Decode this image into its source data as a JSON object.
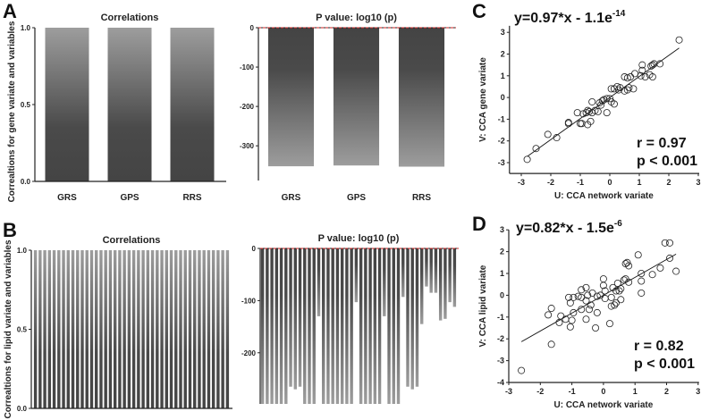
{
  "panels": {
    "A": "A",
    "B": "B",
    "C": "C",
    "D": "D"
  },
  "colors": {
    "bar_dark": "#444444",
    "bar_light": "#9d9d9d",
    "ref_line": "#cc2222",
    "axis": "#222222"
  },
  "chart_data": [
    {
      "id": "A-corr",
      "type": "bar",
      "title": "Correlations",
      "ylabel": "Correaltions for gene variate and variables",
      "categories": [
        "GRS",
        "GPS",
        "RRS"
      ],
      "values": [
        1.0,
        1.0,
        1.0
      ],
      "ylim": [
        0,
        1
      ],
      "yticks": [
        "1.0",
        "0.5",
        "0.0"
      ],
      "ytick_values": [
        1,
        0.5,
        0
      ]
    },
    {
      "id": "A-p",
      "type": "bar",
      "title": "P value: log10 (p)",
      "categories": [
        "GRS",
        "GPS",
        "RRS"
      ],
      "values": [
        -352,
        -350,
        -353
      ],
      "ylim": [
        -370,
        0
      ],
      "yticks": [
        "0",
        "-100",
        "-200",
        "-300"
      ],
      "ytick_values": [
        0,
        -100,
        -200,
        -300
      ],
      "reference_line": 0
    },
    {
      "id": "B-corr",
      "type": "bar",
      "title": "Correlations",
      "ylabel": "Correaltions for lipid variate and variables",
      "values": [
        1,
        1,
        1,
        1,
        1,
        1,
        1,
        1,
        1,
        1,
        1,
        1,
        1,
        1,
        1,
        1,
        1,
        1,
        1,
        1,
        1,
        1,
        1,
        1,
        1,
        1,
        1,
        1,
        1,
        1,
        1,
        1,
        1,
        1,
        1,
        1,
        1,
        1,
        1,
        1,
        1,
        1
      ],
      "ylim": [
        0,
        1
      ],
      "yticks": [
        "1.0",
        "0.5",
        "0.0"
      ],
      "ytick_values": [
        1,
        0.5,
        0
      ]
    },
    {
      "id": "B-p",
      "type": "bar",
      "title": "P value: log10 (p)",
      "values": [
        -298,
        -298,
        -298,
        -298,
        -298,
        -298,
        -265,
        -270,
        -265,
        -298,
        -298,
        -298,
        -130,
        -298,
        -298,
        -298,
        -298,
        -298,
        -298,
        -298,
        -103,
        -298,
        -298,
        -298,
        -298,
        -298,
        -130,
        -298,
        -298,
        -298,
        -93,
        -265,
        -270,
        -265,
        -145,
        -73,
        -85,
        -85,
        -138,
        -135,
        -103,
        -112
      ],
      "ylim": [
        -298,
        0
      ],
      "yticks": [
        "0",
        "-100",
        "-200"
      ],
      "ytick_values": [
        0,
        -100,
        -200
      ],
      "reference_line": 0
    },
    {
      "id": "C",
      "type": "scatter",
      "equation_base": "y=0.97*x - 1.1e",
      "equation_exp": "-14",
      "r_text": "r = 0.97",
      "p_text": "p < 0.001",
      "xlabel": "U: CCA network variate",
      "ylabel": "V: CCA gene variate",
      "xlim": [
        -3.4,
        3
      ],
      "ylim": [
        -3.5,
        3.3
      ],
      "xticks": [
        -3,
        -2,
        -1,
        0,
        1,
        2,
        3
      ],
      "yticks": [
        -3,
        -2,
        -1,
        0,
        1,
        2,
        3
      ],
      "fit": {
        "slope": 0.97,
        "intercept": 0,
        "x_range": [
          -2.8,
          2.35
        ]
      },
      "points": [
        [
          2.35,
          2.65
        ],
        [
          1.7,
          1.55
        ],
        [
          1.5,
          1.55
        ],
        [
          1.4,
          1.45
        ],
        [
          1.45,
          1.5
        ],
        [
          1.1,
          1.5
        ],
        [
          1.1,
          1.25
        ],
        [
          1.05,
          1.0
        ],
        [
          1.2,
          0.95
        ],
        [
          1.35,
          1.05
        ],
        [
          1.45,
          0.95
        ],
        [
          0.85,
          1.1
        ],
        [
          0.7,
          0.95
        ],
        [
          0.6,
          0.9
        ],
        [
          0.5,
          0.95
        ],
        [
          0.65,
          0.45
        ],
        [
          0.6,
          0.35
        ],
        [
          0.5,
          0.3
        ],
        [
          0.35,
          0.45
        ],
        [
          0.25,
          0.5
        ],
        [
          0.15,
          0.4
        ],
        [
          0.05,
          0.4
        ],
        [
          0.15,
          -0.3
        ],
        [
          0.05,
          -0.2
        ],
        [
          0.0,
          -0.05
        ],
        [
          -0.1,
          -0.05
        ],
        [
          -0.2,
          -0.1
        ],
        [
          -0.25,
          -0.15
        ],
        [
          -0.35,
          -0.25
        ],
        [
          -0.1,
          -0.7
        ],
        [
          -0.4,
          -0.65
        ],
        [
          -0.6,
          -0.2
        ],
        [
          -0.6,
          -0.7
        ],
        [
          -0.7,
          -0.65
        ],
        [
          -0.75,
          -0.6
        ],
        [
          -0.8,
          -0.7
        ],
        [
          -0.9,
          -0.75
        ],
        [
          -1.1,
          -0.7
        ],
        [
          -0.65,
          -1.1
        ],
        [
          -0.75,
          -1.25
        ],
        [
          -0.95,
          -1.2
        ],
        [
          -1.0,
          -1.2
        ],
        [
          -1.4,
          -1.15
        ],
        [
          -1.4,
          -1.2
        ],
        [
          -1.8,
          -1.85
        ],
        [
          -2.1,
          -1.7
        ],
        [
          -2.5,
          -2.35
        ],
        [
          -2.8,
          -2.85
        ],
        [
          -0.5,
          -0.6
        ],
        [
          0.3,
          0.35
        ],
        [
          0.8,
          0.4
        ],
        [
          -0.3,
          -0.35
        ]
      ]
    },
    {
      "id": "D",
      "type": "scatter",
      "equation_base": "y=0.82*x - 1.5e",
      "equation_exp": "-6",
      "r_text": "r = 0.82",
      "p_text": "p < 0.001",
      "xlabel": "U: CCA network variate",
      "ylabel": "V: CCA lipid variate",
      "xlim": [
        -3,
        3
      ],
      "ylim": [
        -4,
        3
      ],
      "xticks": [
        -3,
        -2,
        -1,
        0,
        1,
        2,
        3
      ],
      "yticks": [
        -4,
        -3,
        -2,
        -1,
        0,
        1,
        2,
        3
      ],
      "fit": {
        "slope": 0.82,
        "intercept": 0,
        "x_range": [
          -2.6,
          2.3
        ]
      },
      "points": [
        [
          1.95,
          2.4
        ],
        [
          2.1,
          2.4
        ],
        [
          2.1,
          1.7
        ],
        [
          2.3,
          1.1
        ],
        [
          1.8,
          1.25
        ],
        [
          1.55,
          0.95
        ],
        [
          1.2,
          1.0
        ],
        [
          1.2,
          0.65
        ],
        [
          1.2,
          0.1
        ],
        [
          1.1,
          1.85
        ],
        [
          0.75,
          1.5
        ],
        [
          0.7,
          1.45
        ],
        [
          0.8,
          1.35
        ],
        [
          0.8,
          0.6
        ],
        [
          0.7,
          0.75
        ],
        [
          0.65,
          0.7
        ],
        [
          0.55,
          0.3
        ],
        [
          0.45,
          0.55
        ],
        [
          0.4,
          0.2
        ],
        [
          0.5,
          0.2
        ],
        [
          0.55,
          -0.2
        ],
        [
          0.4,
          -0.35
        ],
        [
          0.35,
          -0.45
        ],
        [
          0.25,
          -0.5
        ],
        [
          0.3,
          0.35
        ],
        [
          0.25,
          -0.1
        ],
        [
          0.2,
          -1.3
        ],
        [
          0.0,
          0.75
        ],
        [
          0.0,
          0.45
        ],
        [
          0.05,
          0.2
        ],
        [
          0.05,
          -0.15
        ],
        [
          -0.1,
          0.0
        ],
        [
          -0.2,
          -0.05
        ],
        [
          -0.2,
          -0.8
        ],
        [
          -0.25,
          -1.5
        ],
        [
          -0.35,
          0.1
        ],
        [
          -0.4,
          -0.45
        ],
        [
          -0.45,
          -0.65
        ],
        [
          -0.5,
          0.0
        ],
        [
          -0.55,
          0.35
        ],
        [
          -0.55,
          -0.25
        ],
        [
          -0.55,
          -1.1
        ],
        [
          -0.7,
          0.25
        ],
        [
          -0.7,
          -0.1
        ],
        [
          -0.7,
          -0.65
        ],
        [
          -0.8,
          -0.05
        ],
        [
          -0.95,
          -0.1
        ],
        [
          -0.95,
          -0.8
        ],
        [
          -1.0,
          -1.15
        ],
        [
          -1.05,
          -0.35
        ],
        [
          -1.05,
          -1.45
        ],
        [
          -1.1,
          -0.1
        ],
        [
          -1.2,
          -1.1
        ],
        [
          -1.35,
          -0.95
        ],
        [
          -1.4,
          -1.25
        ],
        [
          -1.65,
          -0.6
        ],
        [
          -1.75,
          -0.9
        ],
        [
          -1.65,
          -2.25
        ],
        [
          -2.6,
          -3.45
        ]
      ]
    }
  ]
}
